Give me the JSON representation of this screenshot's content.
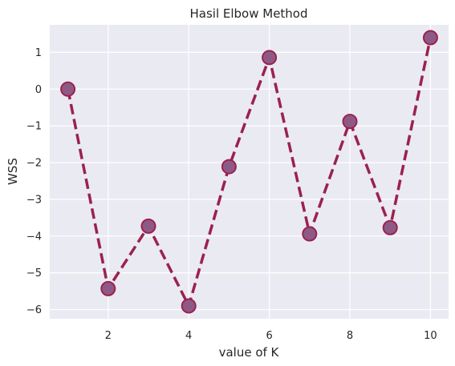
{
  "chart_data": {
    "type": "line",
    "title": "Hasil Elbow Method",
    "xlabel": "value of K",
    "ylabel": "WSS",
    "x": [
      1,
      2,
      3,
      4,
      5,
      6,
      7,
      8,
      9,
      10
    ],
    "series": [
      {
        "values": [
          0.0,
          -5.43,
          -3.73,
          -5.9,
          -2.11,
          0.86,
          -3.94,
          -0.88,
          -3.77,
          1.4
        ]
      }
    ],
    "xlim": [
      0.55,
      10.45
    ],
    "ylim": [
      -6.25,
      1.75
    ],
    "xticks": [
      2,
      4,
      6,
      8,
      10
    ],
    "xtick_labels": [
      "2",
      "4",
      "6",
      "8",
      "10"
    ],
    "yticks": [
      1,
      0,
      -1,
      -2,
      -3,
      -4,
      -5,
      -6
    ],
    "ytick_labels": [
      "1",
      "0",
      "−1",
      "−2",
      "−3",
      "−4",
      "−5",
      "−6"
    ],
    "grid": true,
    "line_style": "dashed",
    "marker": "circle",
    "colors": {
      "line": "#9b2150",
      "marker_fill": "#8e5a85",
      "marker_edge": "#9b2150",
      "plot_background": "#eaeaf2",
      "grid": "#ffffff"
    }
  }
}
